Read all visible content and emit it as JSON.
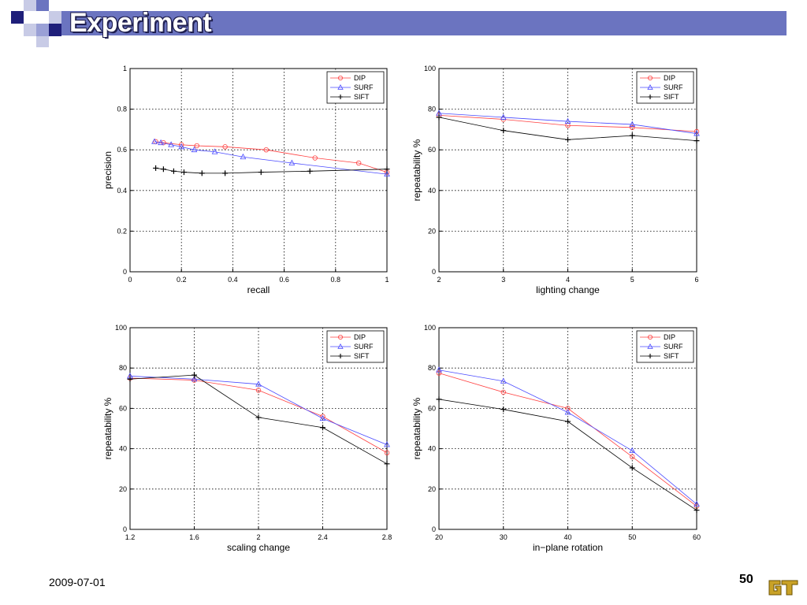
{
  "slide": {
    "title": "Experiment",
    "footer_date": "2009-07-01",
    "page_number": "50",
    "logo": "gt-logo",
    "accent_color": "#6b74c0",
    "square_colors": [
      "#1f1f7a",
      "#6b74c0",
      "#c8cbe6"
    ]
  },
  "legend_labels": [
    "DIP",
    "SURF",
    "SIFT"
  ],
  "series_colors": {
    "DIP": "#ff4040",
    "SURF": "#4a4aff",
    "SIFT": "#000000"
  },
  "chart_data": [
    {
      "type": "line",
      "xlabel": "recall",
      "ylabel": "precision",
      "xlim": [
        0,
        1
      ],
      "ylim": [
        0,
        1
      ],
      "xticks": [
        "0",
        "0.2",
        "0.4",
        "0.6",
        "0.8",
        "1"
      ],
      "yticks": [
        "0",
        "0.2",
        "0.4",
        "0.6",
        "0.8",
        "1"
      ],
      "grid": true,
      "legend": "top-right",
      "series": [
        {
          "name": "DIP",
          "marker": "circle",
          "x": [
            0.1,
            0.13,
            0.2,
            0.26,
            0.37,
            0.53,
            0.72,
            0.89,
            1.0
          ],
          "y": [
            0.64,
            0.635,
            0.625,
            0.62,
            0.615,
            0.6,
            0.56,
            0.535,
            0.49
          ]
        },
        {
          "name": "SURF",
          "marker": "triangle",
          "x": [
            0.095,
            0.12,
            0.16,
            0.2,
            0.25,
            0.33,
            0.44,
            0.63,
            1.0
          ],
          "y": [
            0.64,
            0.635,
            0.625,
            0.615,
            0.6,
            0.59,
            0.565,
            0.535,
            0.48
          ]
        },
        {
          "name": "SIFT",
          "marker": "plus",
          "x": [
            0.1,
            0.13,
            0.17,
            0.21,
            0.28,
            0.37,
            0.51,
            0.7,
            1.0
          ],
          "y": [
            0.51,
            0.505,
            0.495,
            0.49,
            0.485,
            0.485,
            0.49,
            0.495,
            0.505
          ]
        }
      ]
    },
    {
      "type": "line",
      "xlabel": "lighting change",
      "ylabel": "repeatability %",
      "xlim": [
        2,
        6
      ],
      "ylim": [
        0,
        100
      ],
      "xticks": [
        "2",
        "3",
        "4",
        "5",
        "6"
      ],
      "yticks": [
        "0",
        "20",
        "40",
        "60",
        "80",
        "100"
      ],
      "grid": true,
      "legend": "top-right",
      "series": [
        {
          "name": "DIP",
          "marker": "circle",
          "x": [
            2,
            3,
            4,
            5,
            6
          ],
          "y": [
            77,
            75,
            72,
            71,
            69
          ]
        },
        {
          "name": "SURF",
          "marker": "triangle",
          "x": [
            2,
            3,
            4,
            5,
            6
          ],
          "y": [
            78,
            76,
            74,
            72.5,
            68
          ]
        },
        {
          "name": "SIFT",
          "marker": "plus",
          "x": [
            2,
            3,
            4,
            5,
            6
          ],
          "y": [
            76,
            69.5,
            65,
            67,
            64.5
          ]
        }
      ]
    },
    {
      "type": "line",
      "xlabel": "scaling change",
      "ylabel": "repeatability %",
      "xlim": [
        1.2,
        2.8
      ],
      "ylim": [
        0,
        100
      ],
      "xticks": [
        "1.2",
        "1.6",
        "2",
        "2.4",
        "2.8"
      ],
      "yticks": [
        "0",
        "20",
        "40",
        "60",
        "80",
        "100"
      ],
      "grid": true,
      "legend": "top-right",
      "series": [
        {
          "name": "DIP",
          "marker": "circle",
          "x": [
            1.2,
            1.6,
            2.0,
            2.4,
            2.8
          ],
          "y": [
            75,
            74,
            69,
            56,
            38
          ]
        },
        {
          "name": "SURF",
          "marker": "triangle",
          "x": [
            1.2,
            1.6,
            2.0,
            2.4,
            2.8
          ],
          "y": [
            76,
            74.5,
            72,
            55,
            42
          ]
        },
        {
          "name": "SIFT",
          "marker": "plus",
          "x": [
            1.2,
            1.6,
            2.0,
            2.4,
            2.8
          ],
          "y": [
            74.5,
            76.5,
            55.5,
            50.5,
            32.5
          ]
        }
      ]
    },
    {
      "type": "line",
      "xlabel": "in−plane rotation",
      "ylabel": "repeatability %",
      "xlim": [
        20,
        60
      ],
      "ylim": [
        0,
        100
      ],
      "xticks": [
        "20",
        "30",
        "40",
        "50",
        "60"
      ],
      "yticks": [
        "0",
        "20",
        "40",
        "60",
        "80",
        "100"
      ],
      "grid": true,
      "legend": "top-right",
      "series": [
        {
          "name": "DIP",
          "marker": "circle",
          "x": [
            20,
            30,
            40,
            50,
            60
          ],
          "y": [
            77.5,
            68,
            60,
            36,
            11.5
          ]
        },
        {
          "name": "SURF",
          "marker": "triangle",
          "x": [
            20,
            30,
            40,
            50,
            60
          ],
          "y": [
            79,
            73.5,
            58,
            39,
            12.5
          ]
        },
        {
          "name": "SIFT",
          "marker": "plus",
          "x": [
            20,
            30,
            40,
            50,
            60
          ],
          "y": [
            64.5,
            59.5,
            53.5,
            30.5,
            9.5
          ]
        }
      ]
    }
  ]
}
